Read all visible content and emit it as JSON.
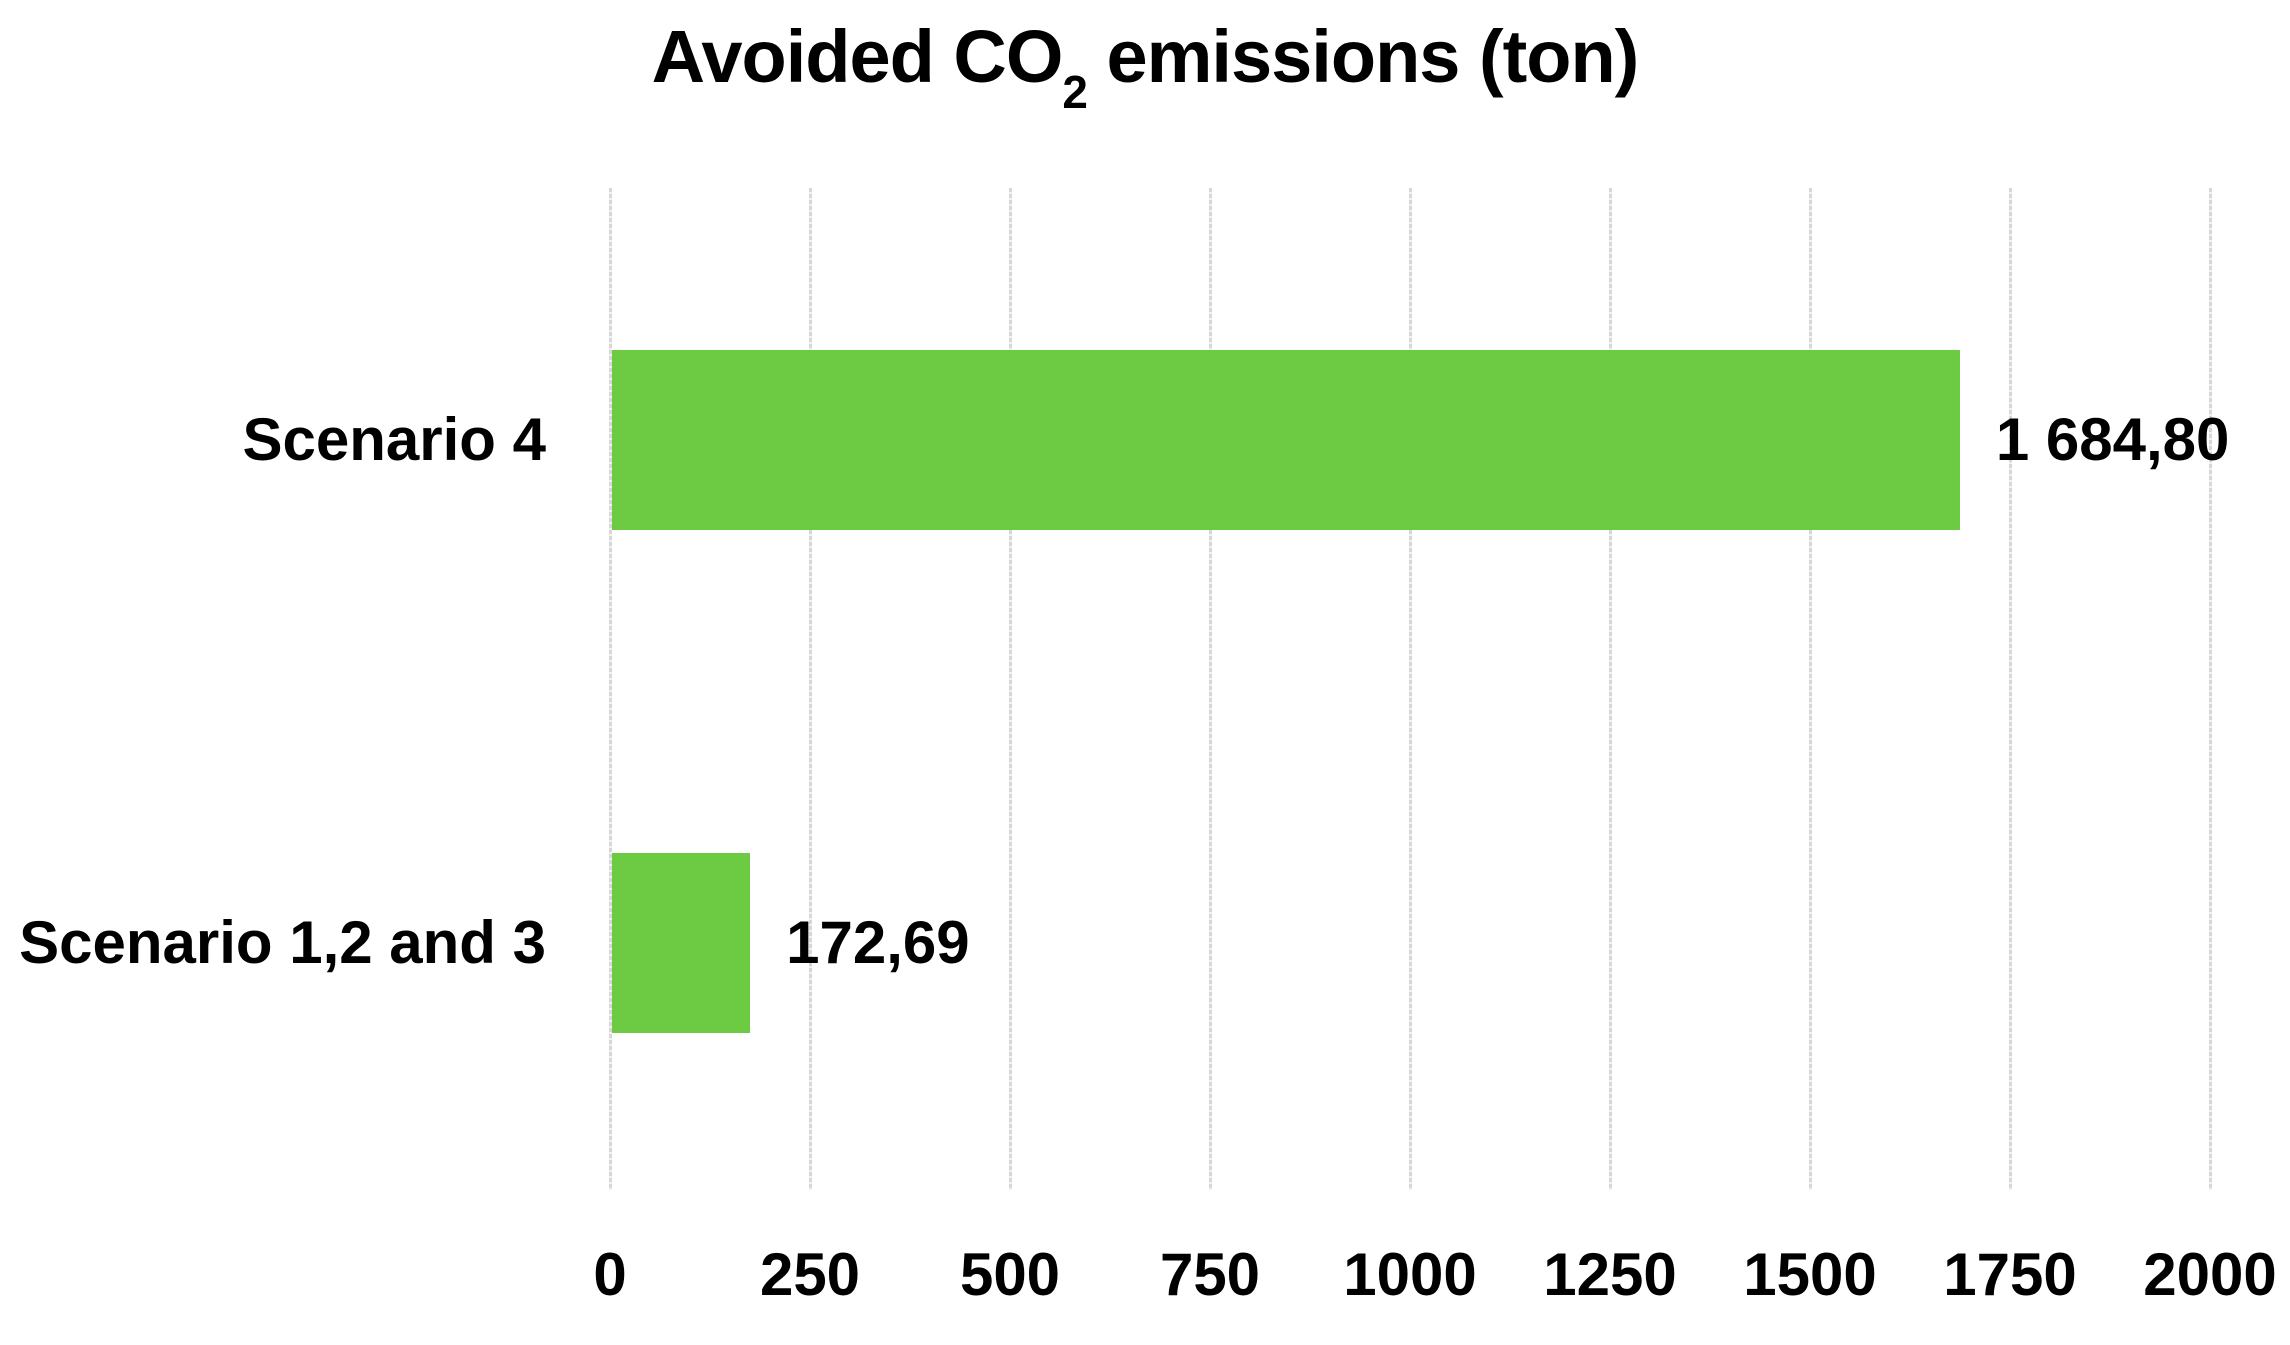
{
  "chart_data": {
    "type": "bar",
    "orientation": "horizontal",
    "title": {
      "prefix": "Avoided CO",
      "subscript": "2",
      "suffix": " emissions (ton)"
    },
    "categories": [
      "Scenario 4",
      "Scenario 1,2 and 3"
    ],
    "values": [
      1684.8,
      172.69
    ],
    "value_labels": [
      "1 684,80",
      "172,69"
    ],
    "x_ticks": [
      "0",
      "250",
      "500",
      "750",
      "1000",
      "1250",
      "1500",
      "1750",
      "2000"
    ],
    "xlim": [
      0,
      2000
    ],
    "grid": true,
    "legend": false,
    "xlabel": "",
    "ylabel": "",
    "colors": {
      "bar": "#6CCB43",
      "gridline": "#D7D7D7",
      "text": "#000000",
      "background": "#FFFFFF"
    }
  }
}
